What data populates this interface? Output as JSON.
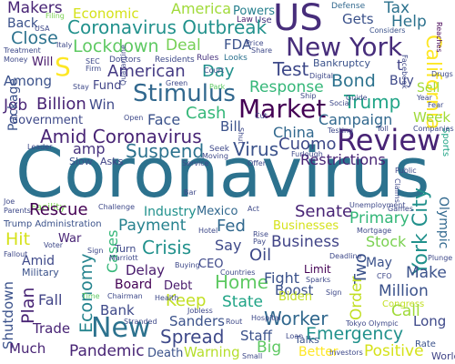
{
  "words": [
    {
      "text": "Coronavirus",
      "color": "#2c728e"
    },
    {
      "text": "Makers",
      "color": "#482475"
    },
    {
      "text": "Back",
      "color": "#3b528b"
    },
    {
      "text": "Economic",
      "color": "#d5e21a"
    },
    {
      "text": "America",
      "color": "#a0da39"
    },
    {
      "text": "Powers",
      "color": "#27808e"
    },
    {
      "text": "Law",
      "color": "#481a6c"
    },
    {
      "text": "Use",
      "color": "#453781"
    },
    {
      "text": "US",
      "color": "#472d7b"
    },
    {
      "text": "Defense",
      "color": "#31688e"
    },
    {
      "text": "Gets",
      "color": "#3b528b"
    },
    {
      "text": "Tax",
      "color": "#2c728e"
    },
    {
      "text": "Help",
      "color": "#2c728e"
    },
    {
      "text": "Coronavirus Outbreak",
      "color": "#21918c"
    },
    {
      "text": "Close",
      "color": "#2c728e"
    },
    {
      "text": "Lockdown",
      "color": "#5ec962"
    },
    {
      "text": "Deal",
      "color": "#75d054"
    },
    {
      "text": "FDA",
      "color": "#3b528b"
    },
    {
      "text": "New York",
      "color": "#472d7b"
    },
    {
      "text": "California",
      "color": "#fde725"
    },
    {
      "text": "S",
      "color": "#fde725"
    },
    {
      "text": "Will",
      "color": "#481a6c"
    },
    {
      "text": "Doctors",
      "color": "#3e4989"
    },
    {
      "text": "Residents",
      "color": "#3e4989"
    },
    {
      "text": "Rules",
      "color": "#46327e"
    },
    {
      "text": "Looks",
      "color": "#2c728e"
    },
    {
      "text": "Bankruptcy",
      "color": "#3b528b"
    },
    {
      "text": "American",
      "color": "#443a83"
    },
    {
      "text": "Day",
      "color": "#21918c"
    },
    {
      "text": "Test",
      "color": "#3e4989"
    },
    {
      "text": "t",
      "color": "#414487"
    },
    {
      "text": "Among",
      "color": "#3b528b"
    },
    {
      "text": "Fund",
      "color": "#414487"
    },
    {
      "text": "Stimulus",
      "color": "#31688e"
    },
    {
      "text": "Response",
      "color": "#35b779"
    },
    {
      "text": "Bond",
      "color": "#2c728e"
    },
    {
      "text": "Buy",
      "color": "#3e4989"
    },
    {
      "text": "Sell",
      "color": "#a0da39"
    },
    {
      "text": "Job",
      "color": "#482475"
    },
    {
      "text": "Billion",
      "color": "#482475"
    },
    {
      "text": "Win",
      "color": "#3e4989"
    },
    {
      "text": "Market",
      "color": "#440154"
    },
    {
      "text": "Trump",
      "color": "#20a486"
    },
    {
      "text": "Government",
      "color": "#3e4989"
    },
    {
      "text": "Face",
      "color": "#3b528b"
    },
    {
      "text": "Cash",
      "color": "#35b779"
    },
    {
      "text": "Campaign",
      "color": "#31688e"
    },
    {
      "text": "Week",
      "color": "#a0da39"
    },
    {
      "text": "Amid Coronavirus",
      "color": "#482475"
    },
    {
      "text": "Bill",
      "color": "#3b528b"
    },
    {
      "text": "China",
      "color": "#31688e"
    },
    {
      "text": "Review",
      "color": "#482475"
    },
    {
      "text": "amp",
      "color": "#46327e"
    },
    {
      "text": "Suspend",
      "color": "#2c728e"
    },
    {
      "text": "Cuomo",
      "color": "#3e4989"
    },
    {
      "text": "Restrictions",
      "color": "#482475"
    },
    {
      "text": "Slow",
      "color": "#3b528b"
    },
    {
      "text": "Asks",
      "color": "#414487"
    },
    {
      "text": "Virus",
      "color": "#3b528b"
    },
    {
      "text": "Package",
      "color": "#3b528b"
    },
    {
      "text": "Sports",
      "color": "#20a486"
    },
    {
      "text": "Facility",
      "color": "#7ad151"
    },
    {
      "text": "Rescue",
      "color": "#440154"
    },
    {
      "text": "Industry",
      "color": "#21918c"
    },
    {
      "text": "Mexico",
      "color": "#31688e"
    },
    {
      "text": "Senate",
      "color": "#482475"
    },
    {
      "text": "York City",
      "color": "#21918c"
    },
    {
      "text": "Trump Administration",
      "color": "#3b528b"
    },
    {
      "text": "Payment",
      "color": "#26828e"
    },
    {
      "text": "Fed",
      "color": "#31688e"
    },
    {
      "text": "Businesses",
      "color": "#d5e21a"
    },
    {
      "text": "Primary",
      "color": "#35b779"
    },
    {
      "text": "Olympic",
      "color": "#31688e"
    },
    {
      "text": "Hit",
      "color": "#d5e21a"
    },
    {
      "text": "War",
      "color": "#482475"
    },
    {
      "text": "Crisis",
      "color": "#21918c"
    },
    {
      "text": "Say",
      "color": "#3e4989"
    },
    {
      "text": "Business",
      "color": "#414487"
    },
    {
      "text": "Stock",
      "color": "#7ad151"
    },
    {
      "text": "Cases",
      "color": "#35b779"
    },
    {
      "text": "Oil",
      "color": "#3e4989"
    },
    {
      "text": "Two",
      "color": "#3b528b"
    },
    {
      "text": "Amid",
      "color": "#3e4989"
    },
    {
      "text": "Turn",
      "color": "#3e4989"
    },
    {
      "text": "Delay",
      "color": "#481a6c"
    },
    {
      "text": "CEO",
      "color": "#3e4989"
    },
    {
      "text": "Home",
      "color": "#5ec962"
    },
    {
      "text": "Fight",
      "color": "#3b528b"
    },
    {
      "text": "Limit",
      "color": "#440154"
    },
    {
      "text": "May",
      "color": "#3b528b"
    },
    {
      "text": "Make",
      "color": "#3b528b"
    },
    {
      "text": "Military",
      "color": "#3b528b"
    },
    {
      "text": "Board",
      "color": "#440154"
    },
    {
      "text": "Debt",
      "color": "#481a6c"
    },
    {
      "text": "Economy",
      "color": "#25848e"
    },
    {
      "text": "Boost",
      "color": "#3b528b"
    },
    {
      "text": "Million",
      "color": "#3b528b"
    },
    {
      "text": "Shutdown",
      "color": "#3b528b"
    },
    {
      "text": "Plan",
      "color": "#482475"
    },
    {
      "text": "Fall",
      "color": "#414487"
    },
    {
      "text": "Keep",
      "color": "#c2df23"
    },
    {
      "text": "State",
      "color": "#20a486"
    },
    {
      "text": "Biden",
      "color": "#c2df23"
    },
    {
      "text": "Order",
      "color": "#c2df23"
    },
    {
      "text": "Congress",
      "color": "#c2df23"
    },
    {
      "text": "Bank",
      "color": "#3e4989"
    },
    {
      "text": "Call",
      "color": "#a0da39"
    },
    {
      "text": "Worker",
      "color": "#31688e"
    },
    {
      "text": "Long",
      "color": "#3e4989"
    },
    {
      "text": "Trade",
      "color": "#482475"
    },
    {
      "text": "Sanders",
      "color": "#3b528b"
    },
    {
      "text": "Emergency",
      "color": "#21918c"
    },
    {
      "text": "New",
      "color": "#2c728e"
    },
    {
      "text": "Spread",
      "color": "#3e4989"
    },
    {
      "text": "Staff",
      "color": "#3b528b"
    },
    {
      "text": "Talks",
      "color": "#3b528b"
    },
    {
      "text": "Rate",
      "color": "#3b528b"
    },
    {
      "text": "Much",
      "color": "#482475"
    },
    {
      "text": "Pandemic",
      "color": "#482475"
    },
    {
      "text": "Death",
      "color": "#3b528b"
    },
    {
      "text": "Warning",
      "color": "#b5de2b"
    },
    {
      "text": "Big",
      "color": "#5ec962"
    },
    {
      "text": "Better",
      "color": "#fde725"
    },
    {
      "text": "Positive",
      "color": "#d5e21a"
    },
    {
      "text": "World",
      "color": "#414487"
    },
    {
      "text": "Filing",
      "color": "#7ad151"
    },
    {
      "text": "Considers",
      "color": "#3b528b"
    },
    {
      "text": "Reaches",
      "color": "#440154"
    },
    {
      "text": "USA",
      "color": "#3e4989"
    },
    {
      "text": "Italy",
      "color": "#3e4989"
    },
    {
      "text": "Treatment",
      "color": "#3e4989"
    },
    {
      "text": "Money",
      "color": "#3e4989"
    },
    {
      "text": "SEC",
      "color": "#3e4989"
    },
    {
      "text": "Firm",
      "color": "#3e4989"
    },
    {
      "text": "Court",
      "color": "#3e4989"
    },
    {
      "text": "Price",
      "color": "#3e4989"
    },
    {
      "text": "Share",
      "color": "#3e4989"
    },
    {
      "text": "Facebook",
      "color": "#3e4989"
    },
    {
      "text": "Drugs",
      "color": "#3e4989"
    },
    {
      "text": "Stay",
      "color": "#3e4989"
    },
    {
      "text": "Quarantine",
      "color": "#3e4989"
    },
    {
      "text": "Green",
      "color": "#3e4989"
    },
    {
      "text": "Park",
      "color": "#5ec962"
    },
    {
      "text": "Digital",
      "color": "#3e4989"
    },
    {
      "text": "Ship",
      "color": "#3e4989"
    },
    {
      "text": "Guide",
      "color": "#3e4989"
    },
    {
      "text": "Fear",
      "color": "#3e4989"
    },
    {
      "text": "Year",
      "color": "#3e4989"
    },
    {
      "text": "Social",
      "color": "#3e4989"
    },
    {
      "text": "Companies",
      "color": "#3e4989"
    },
    {
      "text": "Open",
      "color": "#3e4989"
    },
    {
      "text": "Leader",
      "color": "#3e4989"
    },
    {
      "text": "Shut",
      "color": "#3e4989"
    },
    {
      "text": "Cut",
      "color": "#3e4989"
    },
    {
      "text": "Testing",
      "color": "#3e4989"
    },
    {
      "text": "Toll",
      "color": "#3e4989"
    },
    {
      "text": "Seek",
      "color": "#3e4989"
    },
    {
      "text": "Moving",
      "color": "#3e4989"
    },
    {
      "text": "Offer",
      "color": "#3e4989"
    },
    {
      "text": "Furlough",
      "color": "#3e4989"
    },
    {
      "text": "Service",
      "color": "#3e4989"
    },
    {
      "text": "Public",
      "color": "#3e4989"
    },
    {
      "text": "Claims",
      "color": "#3e4989"
    },
    {
      "text": "Joe",
      "color": "#3e4989"
    },
    {
      "text": "Parents",
      "color": "#3e4989"
    },
    {
      "text": "Challenge",
      "color": "#3e4989"
    },
    {
      "text": "Act",
      "color": "#3e4989"
    },
    {
      "text": "Bar",
      "color": "#3e4989"
    },
    {
      "text": "Games",
      "color": "#3e4989"
    },
    {
      "text": "Unemployment",
      "color": "#3e4989"
    },
    {
      "text": "Mortgage",
      "color": "#3e4989"
    },
    {
      "text": "Hotel",
      "color": "#3e4989"
    },
    {
      "text": "Rise",
      "color": "#3e4989"
    },
    {
      "text": "Pay",
      "color": "#3e4989"
    },
    {
      "text": "Fallout",
      "color": "#3e4989"
    },
    {
      "text": "Voter",
      "color": "#3e4989"
    },
    {
      "text": "Sign",
      "color": "#3e4989"
    },
    {
      "text": "Marriott",
      "color": "#3e4989"
    },
    {
      "text": "Buying",
      "color": "#3e4989"
    },
    {
      "text": "Countries",
      "color": "#3e4989"
    },
    {
      "text": "Deadline",
      "color": "#3e4989"
    },
    {
      "text": "Plunge",
      "color": "#3e4989"
    },
    {
      "text": "Time",
      "color": "#5ec962"
    },
    {
      "text": "Chairman",
      "color": "#3e4989"
    },
    {
      "text": "Health",
      "color": "#3e4989"
    },
    {
      "text": "Sparks",
      "color": "#3e4989"
    },
    {
      "text": "CFO",
      "color": "#3e4989"
    },
    {
      "text": "Sign",
      "color": "#3e4989"
    },
    {
      "text": "Stranded",
      "color": "#3e4989"
    },
    {
      "text": "Jobless",
      "color": "#3e4989"
    },
    {
      "text": "Rout",
      "color": "#3e4989"
    },
    {
      "text": "Hospital",
      "color": "#3e4989"
    },
    {
      "text": "Tokyo Olympic",
      "color": "#3e4989"
    },
    {
      "text": "Loan",
      "color": "#3e4989"
    },
    {
      "text": "Small",
      "color": "#3e4989"
    },
    {
      "text": "Investors",
      "color": "#3e4989"
    }
  ]
}
